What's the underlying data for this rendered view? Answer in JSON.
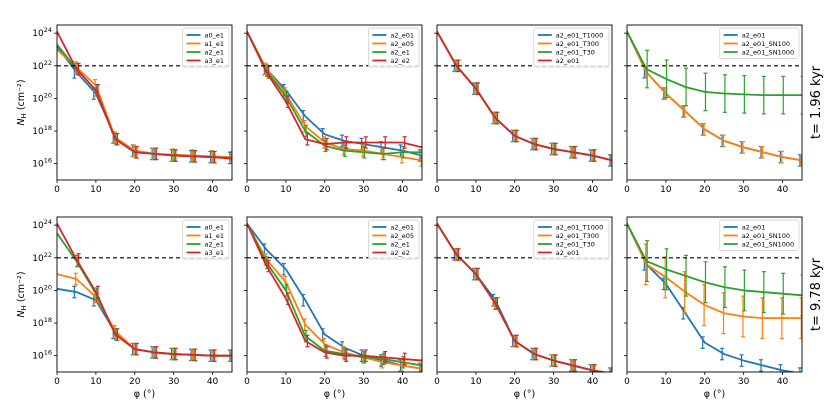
{
  "figure": {
    "xlabel": "φ (°)",
    "ylabel": "N",
    "ylabel_sub": "H",
    "ylabel_unit": " (cm⁻²)",
    "reference_line": 1e+22,
    "row_labels": [
      "t= 1.96 kyr",
      "t= 9.78 kyr"
    ]
  },
  "colors": {
    "blue": "#1f77b4",
    "orange": "#ff7f0e",
    "green": "#2ca02c",
    "red": "#d62728"
  },
  "chart_data": [
    {
      "type": "line",
      "row": 0,
      "col": 0,
      "title": "",
      "xlabel": "",
      "ylabel": "N_H (cm^-2)",
      "xlim": [
        0,
        45
      ],
      "ylim_log10": [
        15,
        24.5
      ],
      "x": [
        0,
        5,
        10,
        15,
        20,
        25,
        30,
        35,
        40,
        45
      ],
      "series": [
        {
          "name": "a0_e1",
          "color": "blue",
          "log10": [
            23.2,
            21.6,
            20.3,
            17.6,
            16.8,
            16.6,
            16.5,
            16.45,
            16.4,
            16.35
          ]
        },
        {
          "name": "a1_e1",
          "color": "orange",
          "log10": [
            23.0,
            21.9,
            20.8,
            17.6,
            16.8,
            16.6,
            16.55,
            16.5,
            16.45,
            16.4
          ]
        },
        {
          "name": "a2_e1",
          "color": "green",
          "log10": [
            23.3,
            21.8,
            20.5,
            17.5,
            16.7,
            16.6,
            16.5,
            16.45,
            16.4,
            16.35
          ]
        },
        {
          "name": "a3_e1",
          "color": "red",
          "log10": [
            24.1,
            21.8,
            20.5,
            17.5,
            16.7,
            16.6,
            16.5,
            16.45,
            16.4,
            16.3
          ]
        }
      ]
    },
    {
      "type": "line",
      "row": 0,
      "col": 1,
      "title": "",
      "xlabel": "",
      "ylabel": "",
      "xlim": [
        0,
        45
      ],
      "ylim_log10": [
        15,
        24.5
      ],
      "x": [
        0,
        5,
        10,
        15,
        20,
        25,
        30,
        35,
        40,
        45
      ],
      "series": [
        {
          "name": "a2_e01",
          "color": "blue",
          "log10": [
            24.1,
            21.8,
            20.5,
            18.9,
            17.8,
            17.4,
            17.2,
            17.0,
            16.8,
            16.5
          ]
        },
        {
          "name": "a2_e05",
          "color": "orange",
          "log10": [
            24.1,
            21.8,
            20.3,
            18.3,
            17.3,
            16.9,
            16.8,
            16.6,
            16.4,
            16.2
          ]
        },
        {
          "name": "a2_e1",
          "color": "green",
          "log10": [
            24.1,
            21.7,
            20.1,
            18.0,
            17.1,
            16.8,
            16.7,
            16.6,
            16.7,
            16.7
          ]
        },
        {
          "name": "a2_e2",
          "color": "red",
          "log10": [
            24.1,
            21.6,
            19.8,
            17.5,
            17.2,
            17.3,
            17.3,
            17.3,
            17.3,
            17.0
          ]
        }
      ]
    },
    {
      "type": "line",
      "row": 0,
      "col": 2,
      "title": "",
      "xlabel": "",
      "ylabel": "",
      "xlim": [
        0,
        45
      ],
      "ylim_log10": [
        15,
        24.5
      ],
      "x": [
        0,
        5,
        10,
        15,
        20,
        25,
        30,
        35,
        40,
        45
      ],
      "series": [
        {
          "name": "a2_e01_T1000",
          "color": "blue",
          "log10": [
            24.1,
            22.0,
            20.6,
            18.8,
            17.7,
            17.2,
            16.9,
            16.7,
            16.5,
            16.2
          ]
        },
        {
          "name": "a2_e01_T300",
          "color": "orange",
          "log10": [
            24.1,
            22.0,
            20.6,
            18.8,
            17.7,
            17.2,
            16.9,
            16.7,
            16.5,
            16.2
          ]
        },
        {
          "name": "a2_e01_T30",
          "color": "green",
          "log10": [
            24.1,
            22.0,
            20.6,
            18.8,
            17.7,
            17.2,
            16.9,
            16.7,
            16.5,
            16.2
          ]
        },
        {
          "name": "a2_e01",
          "color": "red",
          "log10": [
            24.1,
            22.0,
            20.6,
            18.8,
            17.7,
            17.2,
            16.9,
            16.7,
            16.5,
            16.2
          ]
        }
      ]
    },
    {
      "type": "line",
      "row": 0,
      "col": 3,
      "title": "",
      "xlabel": "",
      "ylabel": "",
      "xlim": [
        0,
        45
      ],
      "ylim_log10": [
        15,
        24.5
      ],
      "x": [
        0,
        5,
        10,
        15,
        20,
        25,
        30,
        35,
        40,
        45
      ],
      "series": [
        {
          "name": "a2_e01",
          "color": "blue",
          "log10": [
            24.1,
            21.6,
            20.3,
            19.2,
            18.1,
            17.4,
            17.0,
            16.7,
            16.4,
            16.2
          ]
        },
        {
          "name": "a2_e01_SN100",
          "color": "orange",
          "log10": [
            24.1,
            21.6,
            20.3,
            19.2,
            18.1,
            17.4,
            17.0,
            16.7,
            16.4,
            16.2
          ]
        },
        {
          "name": "a2_e01_SN1000",
          "color": "green",
          "log10": [
            24.1,
            21.8,
            21.2,
            20.7,
            20.4,
            20.3,
            20.25,
            20.2,
            20.2,
            20.2
          ]
        }
      ]
    },
    {
      "type": "line",
      "row": 1,
      "col": 0,
      "title": "",
      "xlabel": "φ (°)",
      "ylabel": "N_H (cm^-2)",
      "xlim": [
        0,
        45
      ],
      "ylim_log10": [
        15,
        24.5
      ],
      "x": [
        0,
        5,
        10,
        15,
        20,
        25,
        30,
        35,
        40,
        45
      ],
      "series": [
        {
          "name": "a0_e1",
          "color": "blue",
          "log10": [
            20.1,
            19.9,
            19.4,
            17.4,
            16.4,
            16.2,
            16.1,
            16.05,
            16.0,
            16.0
          ]
        },
        {
          "name": "a1_e1",
          "color": "orange",
          "log10": [
            21.0,
            20.7,
            19.6,
            17.5,
            16.4,
            16.2,
            16.1,
            16.05,
            16.0,
            16.0
          ]
        },
        {
          "name": "a2_e1",
          "color": "green",
          "log10": [
            23.5,
            21.8,
            19.8,
            17.3,
            16.4,
            16.2,
            16.1,
            16.05,
            16.0,
            16.0
          ]
        },
        {
          "name": "a3_e1",
          "color": "red",
          "log10": [
            24.1,
            21.9,
            19.9,
            17.3,
            16.4,
            16.2,
            16.1,
            16.05,
            16.0,
            16.0
          ]
        }
      ]
    },
    {
      "type": "line",
      "row": 1,
      "col": 1,
      "title": "",
      "xlabel": "φ (°)",
      "ylabel": "",
      "xlim": [
        0,
        45
      ],
      "ylim_log10": [
        15,
        24.5
      ],
      "x": [
        0,
        5,
        10,
        15,
        20,
        25,
        30,
        35,
        40,
        45
      ],
      "series": [
        {
          "name": "a2_e01",
          "color": "blue",
          "log10": [
            24.1,
            22.5,
            21.3,
            19.4,
            17.3,
            16.5,
            16.0,
            15.7,
            15.4,
            15.2
          ]
        },
        {
          "name": "a2_e05",
          "color": "orange",
          "log10": [
            24.1,
            21.9,
            20.5,
            17.9,
            16.7,
            16.2,
            15.9,
            15.6,
            15.4,
            15.2
          ]
        },
        {
          "name": "a2_e1",
          "color": "green",
          "log10": [
            24.1,
            21.7,
            20.0,
            17.2,
            16.3,
            16.1,
            15.9,
            15.8,
            15.6,
            15.4
          ]
        },
        {
          "name": "a2_e2",
          "color": "red",
          "log10": [
            24.1,
            21.5,
            19.5,
            16.9,
            16.2,
            16.0,
            16.0,
            15.9,
            15.8,
            15.7
          ]
        }
      ]
    },
    {
      "type": "line",
      "row": 1,
      "col": 2,
      "title": "",
      "xlabel": "φ (°)",
      "ylabel": "",
      "xlim": [
        0,
        45
      ],
      "ylim_log10": [
        15,
        24.5
      ],
      "x": [
        0,
        5,
        10,
        15,
        20,
        25,
        30,
        35,
        40,
        45
      ],
      "series": [
        {
          "name": "a2_e01_T1000",
          "color": "blue",
          "log10": [
            24.1,
            22.2,
            21.0,
            19.4,
            16.9,
            16.1,
            15.7,
            15.4,
            15.1,
            14.9
          ]
        },
        {
          "name": "a2_e01_T300",
          "color": "orange",
          "log10": [
            24.1,
            22.2,
            21.0,
            19.2,
            16.9,
            16.1,
            15.7,
            15.4,
            15.1,
            14.9
          ]
        },
        {
          "name": "a2_e01_T30",
          "color": "green",
          "log10": [
            24.1,
            22.2,
            21.0,
            19.2,
            16.9,
            16.1,
            15.7,
            15.4,
            15.1,
            14.9
          ]
        },
        {
          "name": "a2_e01",
          "color": "red",
          "log10": [
            24.1,
            22.2,
            21.0,
            19.2,
            16.9,
            16.1,
            15.7,
            15.4,
            15.1,
            14.9
          ]
        }
      ]
    },
    {
      "type": "line",
      "row": 1,
      "col": 3,
      "title": "",
      "xlabel": "φ (°)",
      "ylabel": "",
      "xlim": [
        0,
        45
      ],
      "ylim_log10": [
        15,
        24.5
      ],
      "x": [
        0,
        5,
        10,
        15,
        20,
        25,
        30,
        35,
        40,
        45
      ],
      "series": [
        {
          "name": "a2_e01",
          "color": "blue",
          "log10": [
            24.1,
            21.6,
            20.4,
            18.6,
            16.8,
            16.1,
            15.7,
            15.4,
            15.1,
            14.9
          ]
        },
        {
          "name": "a2_e01_SN100",
          "color": "orange",
          "log10": [
            24.1,
            21.6,
            20.8,
            19.9,
            19.1,
            18.6,
            18.4,
            18.3,
            18.3,
            18.3
          ]
        },
        {
          "name": "a2_e01_SN1000",
          "color": "green",
          "log10": [
            24.1,
            21.8,
            21.3,
            20.9,
            20.5,
            20.2,
            20.0,
            19.9,
            19.8,
            19.7
          ]
        }
      ]
    }
  ]
}
